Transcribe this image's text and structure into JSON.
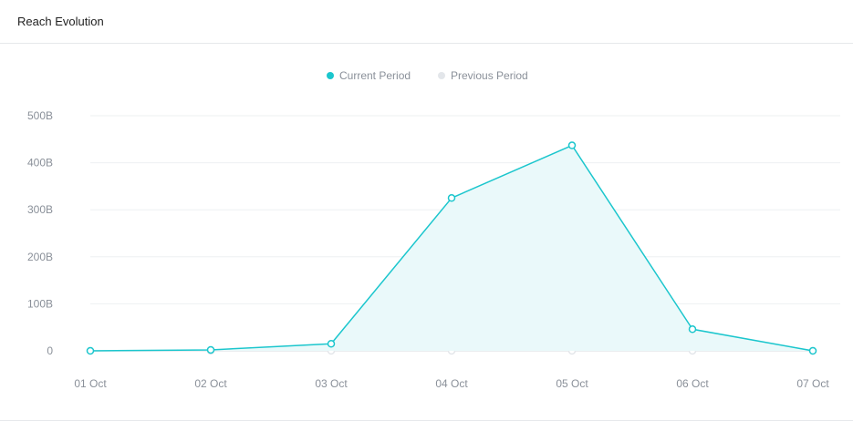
{
  "card": {
    "title": "Reach Evolution"
  },
  "colors": {
    "current": "#1bc6cd",
    "current_fill": "#eaf9fa",
    "previous": "#e3e6ea",
    "grid": "#eef0f2",
    "text": "#8a9099"
  },
  "chart_data": {
    "type": "line",
    "categories": [
      "01 Oct",
      "02 Oct",
      "03 Oct",
      "04 Oct",
      "05 Oct",
      "06 Oct",
      "07 Oct"
    ],
    "series": [
      {
        "name": "Current Period",
        "values": [
          0,
          2,
          15,
          325,
          437,
          46,
          0
        ],
        "color": "#1bc6cd",
        "area": true
      },
      {
        "name": "Previous Period",
        "values": [
          0,
          0,
          0,
          0,
          0,
          0,
          0
        ],
        "color": "#e3e6ea",
        "area": false
      }
    ],
    "y_ticks": [
      0,
      100,
      200,
      300,
      400,
      500
    ],
    "y_tick_labels": [
      "0",
      "100B",
      "200B",
      "300B",
      "400B",
      "500B"
    ],
    "ylim": [
      0,
      500
    ],
    "grid": true,
    "legend_position": "top-center"
  }
}
